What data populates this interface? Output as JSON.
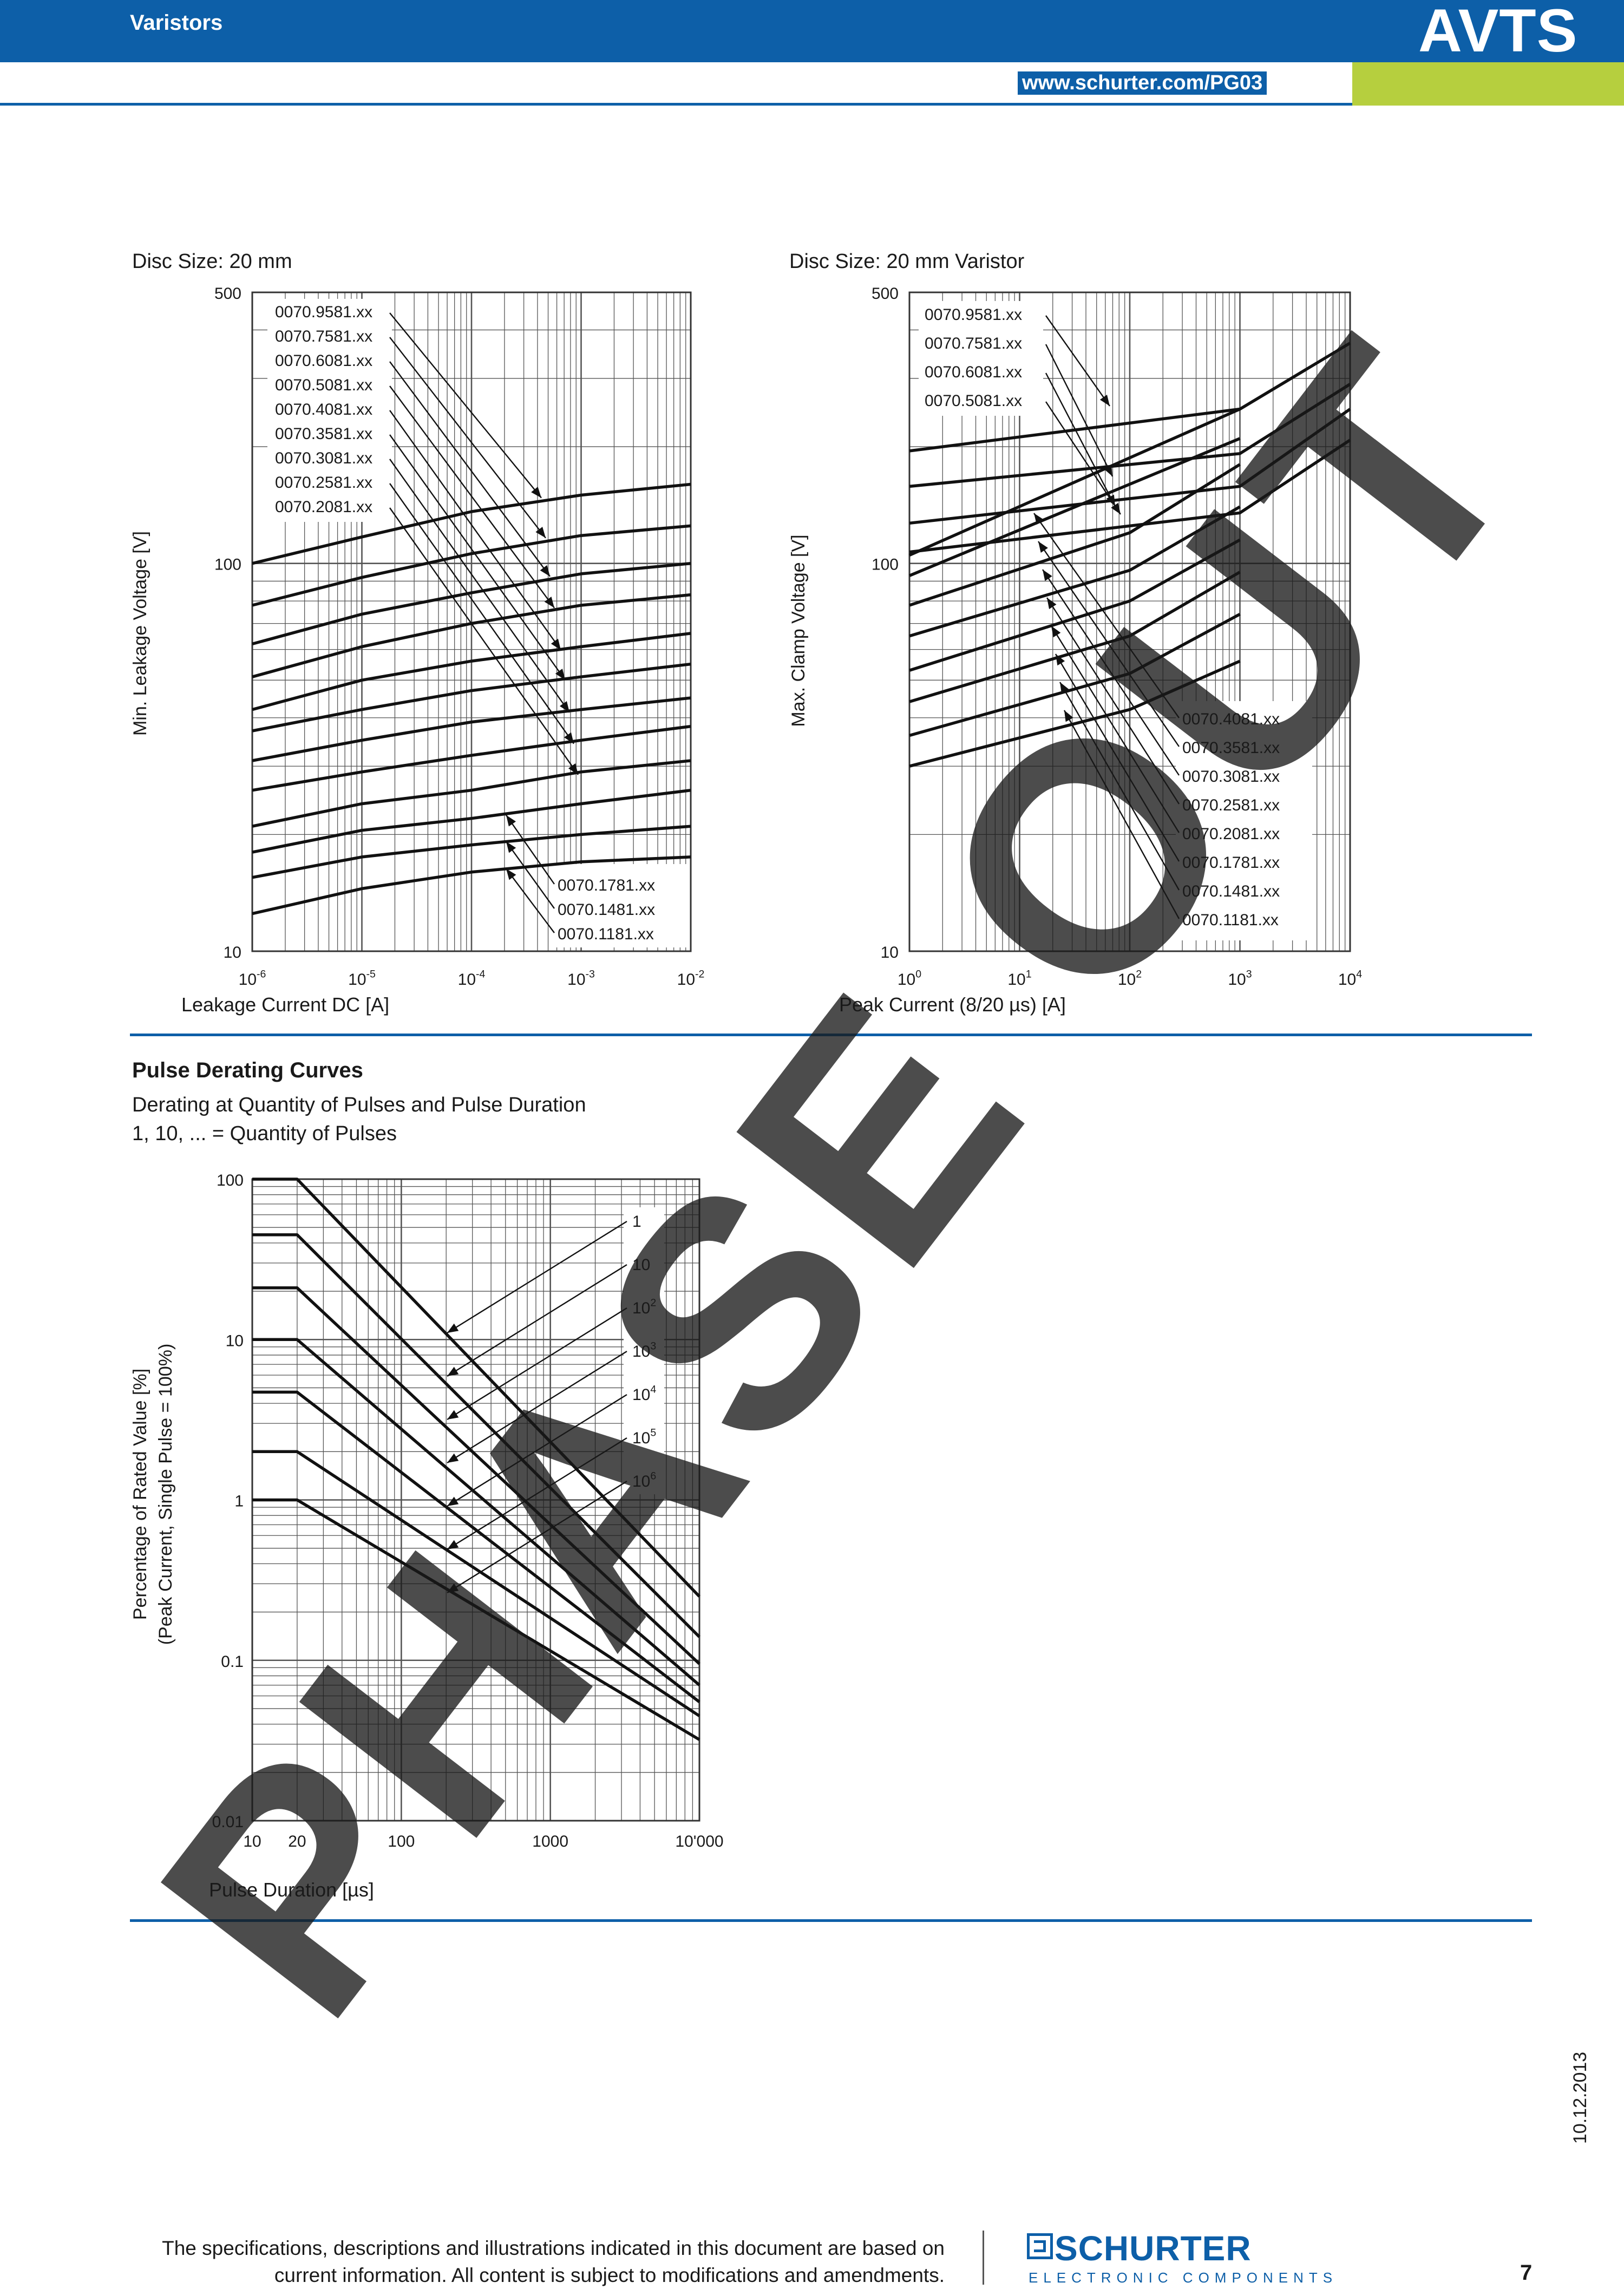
{
  "header": {
    "category": "Varistors",
    "product": "AVTS",
    "url": "www.schurter.com/PG03",
    "colors": {
      "primary": "#0d5fa8",
      "accent": "#b6cf3e"
    }
  },
  "watermark": "PHASE OUT",
  "charts_text": {
    "leak": {
      "caption": "Disc Size: 20 mm",
      "ylabel": "Min. Leakage Voltage [V]",
      "xlabel": "Leakage Current DC [A]"
    },
    "clamp": {
      "caption": "Disc Size: 20 mm Varistor",
      "ylabel": "Max. Clamp Voltage [V]",
      "xlabel": "Peak Current (8/20 µs) [A]"
    },
    "derate": {
      "section_title": "Pulse Derating Curves",
      "subtitle1": "Derating at Quantity of Pulses and Pulse Duration",
      "subtitle2": "1, 10, ... = Quantity of Pulses",
      "ylabel1": "Percentage of Rated Value [%]",
      "ylabel2": "(Peak Current, Single Pulse = 100%)",
      "xlabel": "Pulse Duration [µs]"
    }
  },
  "chart_data": [
    {
      "id": "leak",
      "type": "line",
      "xscale": "log",
      "yscale": "log",
      "xlim": [
        1e-06,
        0.01
      ],
      "ylim": [
        10,
        500
      ],
      "x_tick_labels": [
        {
          "base": "10",
          "exp": "-6"
        },
        {
          "base": "10",
          "exp": "-5"
        },
        {
          "base": "10",
          "exp": "-4"
        },
        {
          "base": "10",
          "exp": "-3"
        },
        {
          "base": "10",
          "exp": "-2"
        }
      ],
      "y_tick_labels": [
        "500",
        "100",
        "10"
      ],
      "grid": true,
      "x": [
        1e-06,
        1e-05,
        0.0001,
        0.001,
        0.01
      ],
      "series": [
        {
          "name": "0070.9581.xx",
          "values": [
            100,
            117,
            136,
            150,
            160
          ]
        },
        {
          "name": "0070.7581.xx",
          "values": [
            78,
            92,
            106,
            118,
            125
          ]
        },
        {
          "name": "0070.6081.xx",
          "values": [
            62,
            74,
            84,
            94,
            100
          ]
        },
        {
          "name": "0070.5081.xx",
          "values": [
            51,
            61,
            70,
            78,
            83
          ]
        },
        {
          "name": "0070.4081.xx",
          "values": [
            42,
            50,
            56,
            61,
            66
          ]
        },
        {
          "name": "0070.3581.xx",
          "values": [
            37,
            42,
            47,
            51,
            55
          ]
        },
        {
          "name": "0070.3081.xx",
          "values": [
            31,
            35,
            39,
            42,
            45
          ]
        },
        {
          "name": "0070.2581.xx",
          "values": [
            26,
            29,
            32,
            35,
            38
          ]
        },
        {
          "name": "0070.2081.xx",
          "values": [
            21,
            24,
            26,
            29,
            31
          ]
        },
        {
          "name": "0070.1781.xx",
          "values": [
            18,
            20.5,
            22,
            24,
            26
          ]
        },
        {
          "name": "0070.1481.xx",
          "values": [
            15.5,
            17.5,
            18.8,
            20,
            21
          ]
        },
        {
          "name": "0070.1181.xx",
          "values": [
            12.5,
            14.5,
            16,
            17,
            17.5
          ]
        }
      ]
    },
    {
      "id": "clamp",
      "type": "line",
      "xscale": "log",
      "yscale": "log",
      "xlim": [
        1,
        10000
      ],
      "ylim": [
        10,
        500
      ],
      "x_tick_labels": [
        {
          "base": "10",
          "exp": "0"
        },
        {
          "base": "10",
          "exp": "1"
        },
        {
          "base": "10",
          "exp": "2"
        },
        {
          "base": "10",
          "exp": "3"
        },
        {
          "base": "10",
          "exp": "4"
        }
      ],
      "y_tick_labels": [
        "500",
        "100",
        "10"
      ],
      "grid": true,
      "series": [
        {
          "name": "0070.9581.xx",
          "x": [
            1,
            1000,
            10000
          ],
          "values": [
            195,
            250,
            370
          ]
        },
        {
          "name": "0070.7581.xx",
          "x": [
            1,
            1000,
            10000
          ],
          "values": [
            158,
            192,
            290
          ]
        },
        {
          "name": "0070.6081.xx",
          "x": [
            1,
            1000,
            10000
          ],
          "values": [
            127,
            158,
            250
          ]
        },
        {
          "name": "0070.5081.xx",
          "x": [
            1,
            1000,
            10000
          ],
          "values": [
            107,
            135,
            208
          ]
        },
        {
          "name": "0070.4081.xx",
          "x": [
            1,
            1000
          ],
          "values": [
            105,
            250
          ]
        },
        {
          "name": "0070.3581.xx",
          "x": [
            1,
            1000
          ],
          "values": [
            93,
            210
          ]
        },
        {
          "name": "0070.3081.xx",
          "x": [
            1,
            100,
            1000
          ],
          "values": [
            78,
            120,
            180
          ]
        },
        {
          "name": "0070.2581.xx",
          "x": [
            1,
            100,
            1000
          ],
          "values": [
            65,
            96,
            140
          ]
        },
        {
          "name": "0070.2081.xx",
          "x": [
            1,
            100,
            1000
          ],
          "values": [
            53,
            80,
            115
          ]
        },
        {
          "name": "0070.1781.xx",
          "x": [
            1,
            100,
            1000
          ],
          "values": [
            44,
            65,
            95
          ]
        },
        {
          "name": "0070.1481.xx",
          "x": [
            1,
            100,
            1000
          ],
          "values": [
            36,
            52,
            74
          ]
        },
        {
          "name": "0070.1181.xx",
          "x": [
            1,
            100,
            1000
          ],
          "values": [
            30,
            42,
            56
          ]
        }
      ]
    },
    {
      "id": "derate",
      "type": "line",
      "xscale": "log",
      "yscale": "log",
      "xlim": [
        10,
        10000
      ],
      "ylim": [
        0.01,
        100
      ],
      "x_tick_labels": [
        "10",
        "20",
        "100",
        "1000",
        "10'000"
      ],
      "y_tick_labels": [
        "100",
        "10",
        "1",
        "0.1",
        "0.01"
      ],
      "grid": true,
      "x": [
        10,
        20,
        10000
      ],
      "series": [
        {
          "name": "1",
          "label": {
            "base": "1",
            "exp": ""
          },
          "values": [
            100,
            100,
            0.25
          ]
        },
        {
          "name": "10",
          "label": {
            "base": "10",
            "exp": ""
          },
          "values": [
            45,
            45,
            0.14
          ]
        },
        {
          "name": "10²",
          "label": {
            "base": "10",
            "exp": "2"
          },
          "values": [
            21,
            21,
            0.095
          ]
        },
        {
          "name": "10³",
          "label": {
            "base": "10",
            "exp": "3"
          },
          "values": [
            10,
            10,
            0.07
          ]
        },
        {
          "name": "10⁴",
          "label": {
            "base": "10",
            "exp": "4"
          },
          "values": [
            4.7,
            4.7,
            0.055
          ]
        },
        {
          "name": "10⁵",
          "label": {
            "base": "10",
            "exp": "5"
          },
          "values": [
            2,
            2,
            0.045
          ]
        },
        {
          "name": "10⁶",
          "label": {
            "base": "10",
            "exp": "6"
          },
          "values": [
            1,
            1,
            0.032
          ]
        }
      ]
    }
  ],
  "footer": {
    "disclaimer_line1": "The specifications, descriptions and illustrations indicated in this document are based on",
    "disclaimer_line2": "current information. All content is subject to modifications and amendments.",
    "logo": "SCHURTER",
    "logo_sub": "ELECTRONIC COMPONENTS",
    "page": "7",
    "date": "10.12.2013"
  }
}
